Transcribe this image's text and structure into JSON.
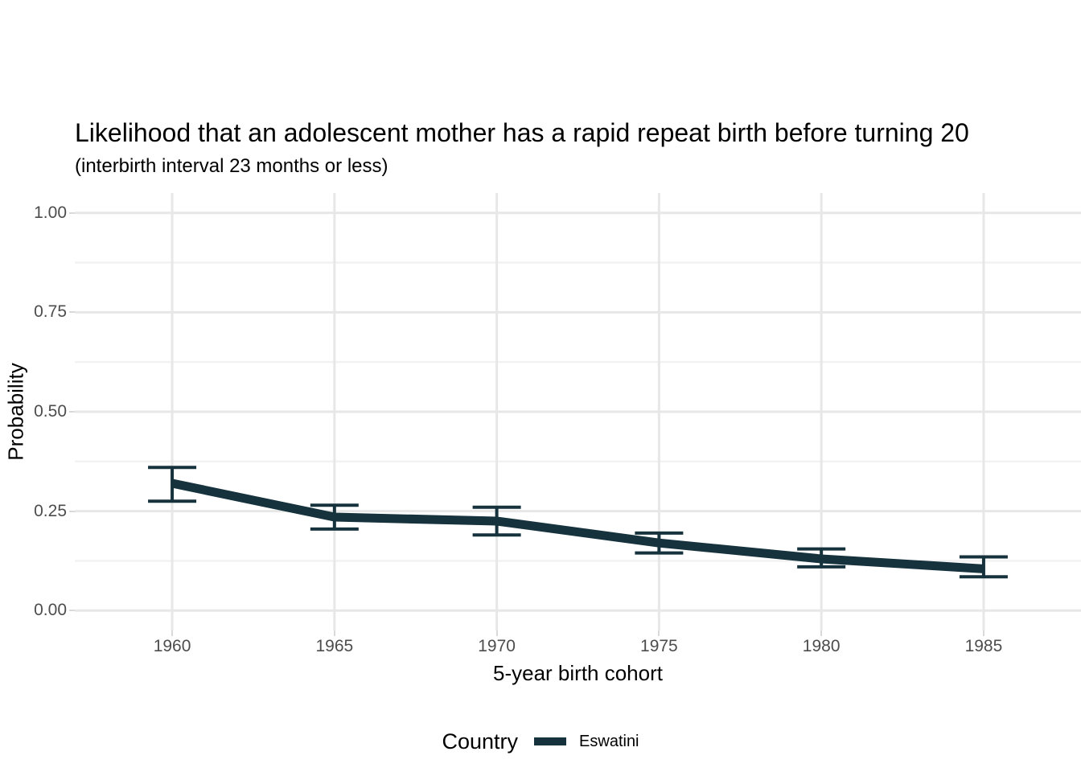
{
  "chart_data": {
    "type": "line",
    "title": "Likelihood that an adolescent mother has a rapid repeat birth before turning 20",
    "subtitle": "(interbirth interval 23 months or less)",
    "xlabel": "5-year birth cohort",
    "ylabel": "Probability",
    "x": [
      1960,
      1965,
      1970,
      1975,
      1980,
      1985
    ],
    "series": [
      {
        "name": "Eswatini",
        "values": [
          0.32,
          0.235,
          0.225,
          0.17,
          0.13,
          0.105
        ],
        "ci_low": [
          0.275,
          0.205,
          0.19,
          0.145,
          0.11,
          0.085
        ],
        "ci_high": [
          0.36,
          0.265,
          0.26,
          0.195,
          0.155,
          0.135
        ],
        "color": "#16323d"
      }
    ],
    "error_bars": true,
    "xlim": [
      1957,
      1988
    ],
    "ylim": [
      -0.05,
      1.05
    ],
    "x_ticks": [
      {
        "value": 1960,
        "label": "1960"
      },
      {
        "value": 1965,
        "label": "1965"
      },
      {
        "value": 1970,
        "label": "1970"
      },
      {
        "value": 1975,
        "label": "1975"
      },
      {
        "value": 1980,
        "label": "1980"
      },
      {
        "value": 1985,
        "label": "1985"
      }
    ],
    "y_ticks": [
      {
        "value": 0.0,
        "label": "0.00"
      },
      {
        "value": 0.25,
        "label": "0.25"
      },
      {
        "value": 0.5,
        "label": "0.50"
      },
      {
        "value": 0.75,
        "label": "0.75"
      },
      {
        "value": 1.0,
        "label": "1.00"
      }
    ],
    "y_minor_gridlines": [
      0.125,
      0.375,
      0.625,
      0.875
    ],
    "grid": "horizontal major and minor gridlines; vertical major gridlines only; no axis lines",
    "legend": {
      "position": "bottom",
      "title": "Country",
      "entries": [
        {
          "label": "Eswatini",
          "color": "#16323d"
        }
      ]
    }
  },
  "style": {
    "line_color": "#16323d",
    "grid_major_color": "#e7e7e7",
    "grid_minor_color": "#f2f2f2",
    "tick_color": "#d9d9d9",
    "tick_label_color": "#4d4d4d",
    "text_color": "#000000",
    "background": "#ffffff"
  }
}
